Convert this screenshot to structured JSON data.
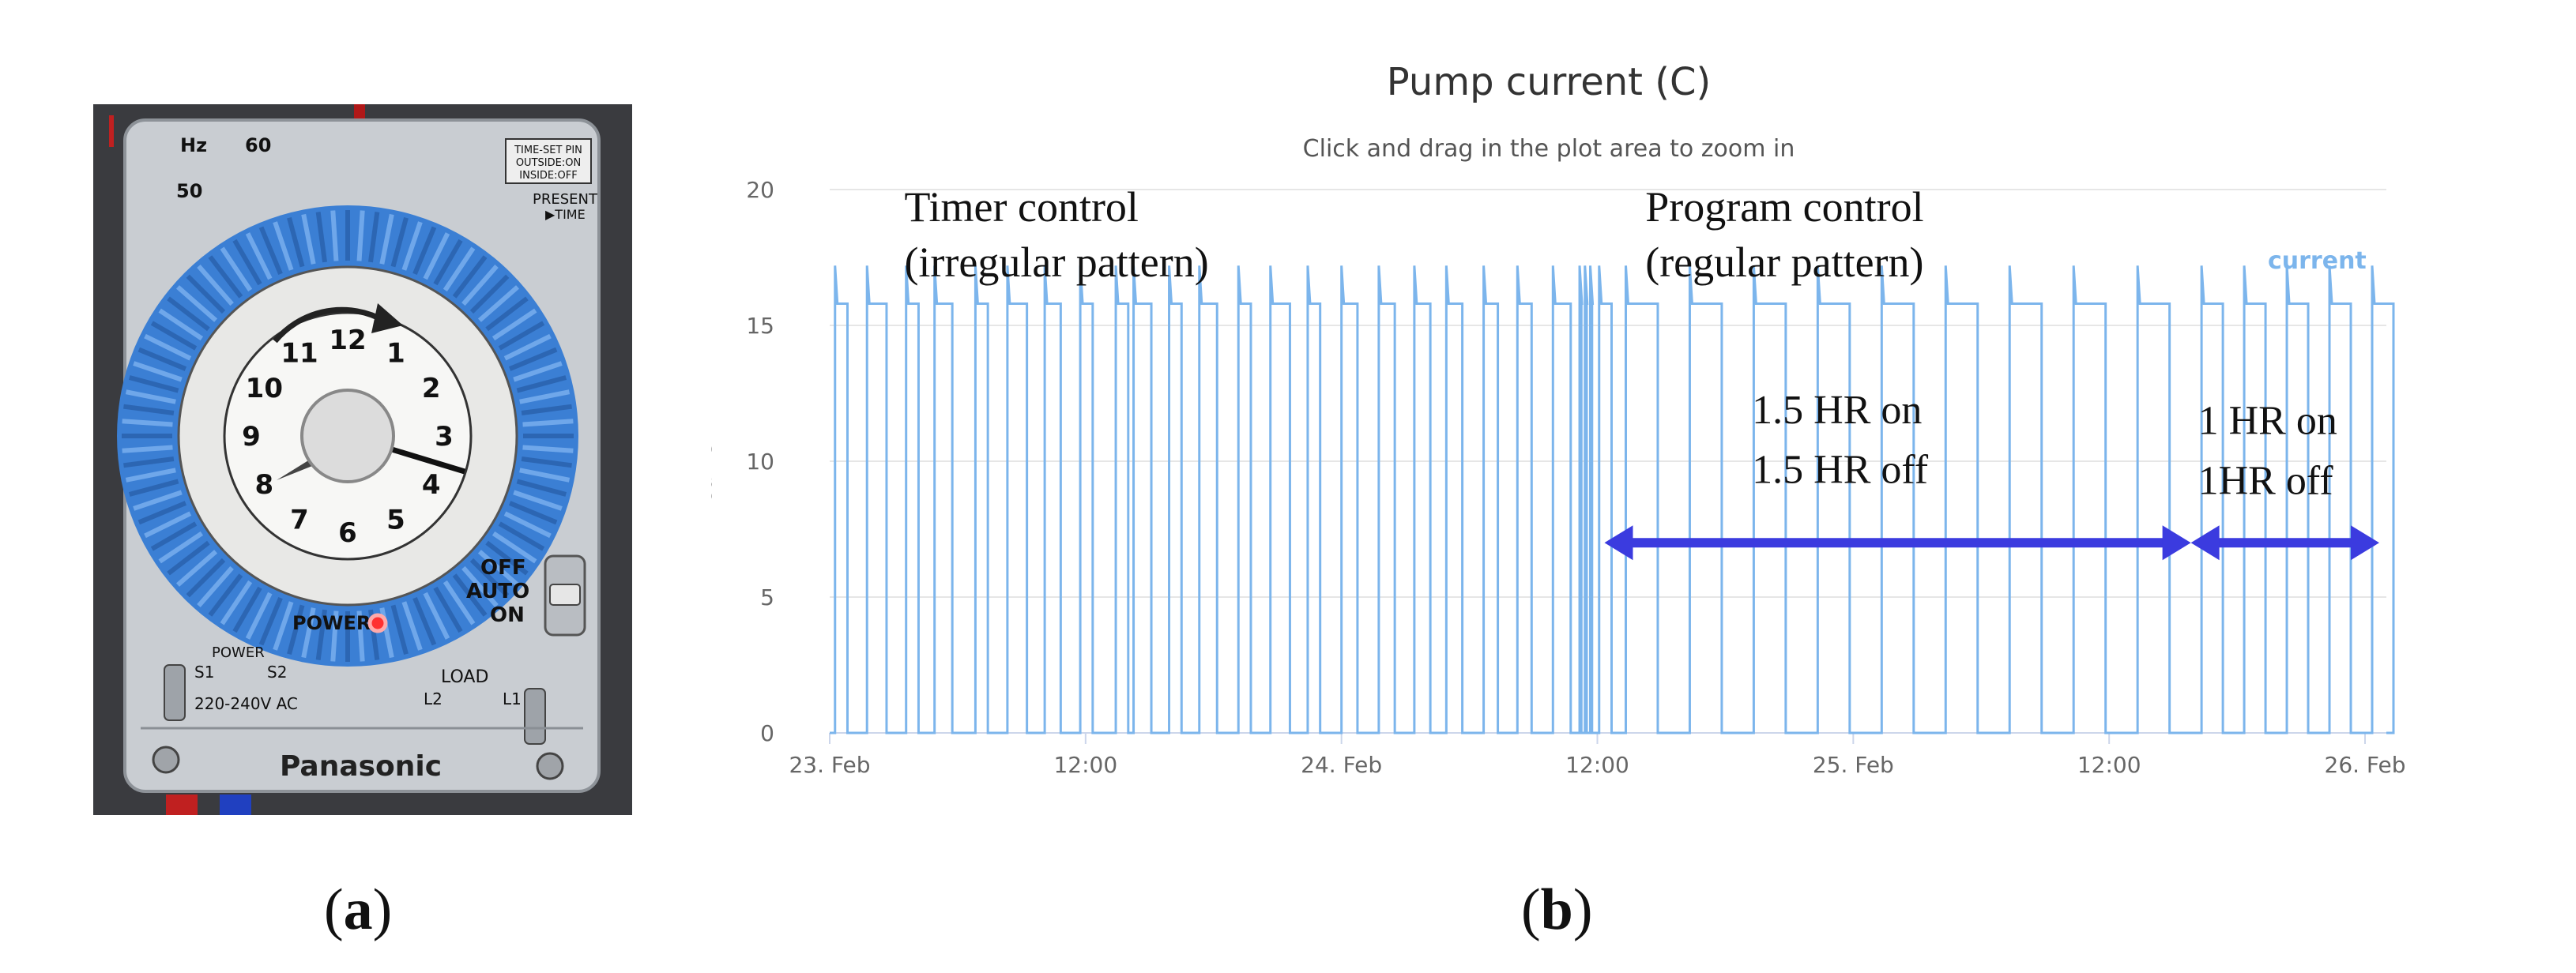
{
  "panel_a": {
    "caption_letter": "a",
    "timer": {
      "hz_label": "Hz",
      "hz_50": "50",
      "hz_60": "60",
      "timeset_pin_lines": [
        "TIME-SET PIN",
        "OUTSIDE:ON",
        "INSIDE:OFF"
      ],
      "present_time": "PRESENT",
      "present_time_2": "▶TIME",
      "clock_numbers": [
        "12",
        "1",
        "2",
        "3",
        "4",
        "5",
        "6",
        "7",
        "8",
        "9",
        "10",
        "11"
      ],
      "switch_labels": [
        "OFF",
        "AUTO",
        "ON"
      ],
      "power_label": "POWER",
      "power_terminals": "POWER",
      "s1": "S1",
      "s2": "S2",
      "voltage": "220-240V AC",
      "load_label": "LOAD",
      "l1": "L1",
      "l2": "L2",
      "brand": "Panasonic",
      "colors": {
        "body": "#c9cdd2",
        "ring": "#3b7fd4",
        "dial": "#f2f2f2",
        "led": "#ff3030"
      }
    }
  },
  "panel_b": {
    "caption_letter": "b"
  },
  "chart_data": {
    "type": "line",
    "title": "Pump current (C)",
    "subtitle": "Click and drag in the plot area to zoom in",
    "ylabel": "current",
    "xlabel": "",
    "legend": {
      "entries": [
        "current"
      ],
      "placement": "top-right"
    },
    "grid": true,
    "ylim": [
      0,
      20
    ],
    "yticks": [
      0,
      5,
      10,
      15,
      20
    ],
    "xlim": [
      "2023-02-23T00:00",
      "2023-02-26T01:00"
    ],
    "xticks": [
      {
        "t": "2023-02-23T00:00",
        "label": "23. Feb"
      },
      {
        "t": "2023-02-23T12:00",
        "label": "12:00"
      },
      {
        "t": "2023-02-24T00:00",
        "label": "24. Feb"
      },
      {
        "t": "2023-02-24T12:00",
        "label": "12:00"
      },
      {
        "t": "2023-02-25T00:00",
        "label": "25. Feb"
      },
      {
        "t": "2023-02-25T12:00",
        "label": "12:00"
      },
      {
        "t": "2023-02-26T00:00",
        "label": "26. Feb"
      }
    ],
    "series": [
      {
        "name": "current",
        "color": "#7cb5ec",
        "on_value": 15.8,
        "spike_value": 17.2,
        "on_intervals": [
          [
            "2023-02-23T00:15",
            "2023-02-23T00:50"
          ],
          [
            "2023-02-23T01:45",
            "2023-02-23T02:40"
          ],
          [
            "2023-02-23T03:35",
            "2023-02-23T04:10"
          ],
          [
            "2023-02-23T04:55",
            "2023-02-23T05:45"
          ],
          [
            "2023-02-23T06:50",
            "2023-02-23T07:25"
          ],
          [
            "2023-02-23T08:20",
            "2023-02-23T09:15"
          ],
          [
            "2023-02-23T10:05",
            "2023-02-23T10:50"
          ],
          [
            "2023-02-23T11:45",
            "2023-02-23T12:20"
          ],
          [
            "2023-02-23T13:25",
            "2023-02-23T14:00"
          ],
          [
            "2023-02-23T14:15",
            "2023-02-23T15:05"
          ],
          [
            "2023-02-23T15:55",
            "2023-02-23T16:30"
          ],
          [
            "2023-02-23T17:20",
            "2023-02-23T18:10"
          ],
          [
            "2023-02-23T19:10",
            "2023-02-23T19:45"
          ],
          [
            "2023-02-23T20:40",
            "2023-02-23T21:35"
          ],
          [
            "2023-02-23T22:25",
            "2023-02-23T23:00"
          ],
          [
            "2023-02-24T00:00",
            "2023-02-24T00:45"
          ],
          [
            "2023-02-24T01:45",
            "2023-02-24T02:30"
          ],
          [
            "2023-02-24T03:25",
            "2023-02-24T04:10"
          ],
          [
            "2023-02-24T04:55",
            "2023-02-24T05:40"
          ],
          [
            "2023-02-24T06:40",
            "2023-02-24T07:20"
          ],
          [
            "2023-02-24T08:15",
            "2023-02-24T08:55"
          ],
          [
            "2023-02-24T09:55",
            "2023-02-24T10:45"
          ],
          [
            "2023-02-24T11:10",
            "2023-02-24T11:15"
          ],
          [
            "2023-02-24T11:25",
            "2023-02-24T11:30"
          ],
          [
            "2023-02-24T11:40",
            "2023-02-24T11:45"
          ],
          [
            "2023-02-24T12:05",
            "2023-02-24T12:40"
          ],
          [
            "2023-02-24T13:20",
            "2023-02-24T14:50"
          ],
          [
            "2023-02-24T16:20",
            "2023-02-24T17:50"
          ],
          [
            "2023-02-24T19:20",
            "2023-02-24T20:50"
          ],
          [
            "2023-02-24T22:20",
            "2023-02-24T23:50"
          ],
          [
            "2023-02-25T01:20",
            "2023-02-25T02:50"
          ],
          [
            "2023-02-25T04:20",
            "2023-02-25T05:50"
          ],
          [
            "2023-02-25T07:20",
            "2023-02-25T08:50"
          ],
          [
            "2023-02-25T10:20",
            "2023-02-25T11:50"
          ],
          [
            "2023-02-25T13:20",
            "2023-02-25T14:50"
          ],
          [
            "2023-02-25T16:20",
            "2023-02-25T17:20"
          ],
          [
            "2023-02-25T18:20",
            "2023-02-25T19:20"
          ],
          [
            "2023-02-25T20:20",
            "2023-02-25T21:20"
          ],
          [
            "2023-02-25T22:20",
            "2023-02-25T23:20"
          ],
          [
            "2023-02-26T00:20",
            "2023-02-26T01:20"
          ]
        ]
      }
    ],
    "annotations": {
      "timer_control": [
        "Timer control",
        "(irregular pattern)"
      ],
      "program_control": [
        "Program control",
        "(regular pattern)"
      ],
      "note_15": [
        "1.5 HR on",
        "1.5 HR off"
      ],
      "note_1": [
        "1 HR on",
        "1HR off"
      ],
      "arrow_15": [
        "2023-02-24T12:20",
        "2023-02-25T15:50"
      ],
      "arrow_1": [
        "2023-02-25T15:50",
        "2023-02-26T00:40"
      ],
      "arrow_value": 7,
      "arrow_color": "#3b3bdf"
    }
  }
}
